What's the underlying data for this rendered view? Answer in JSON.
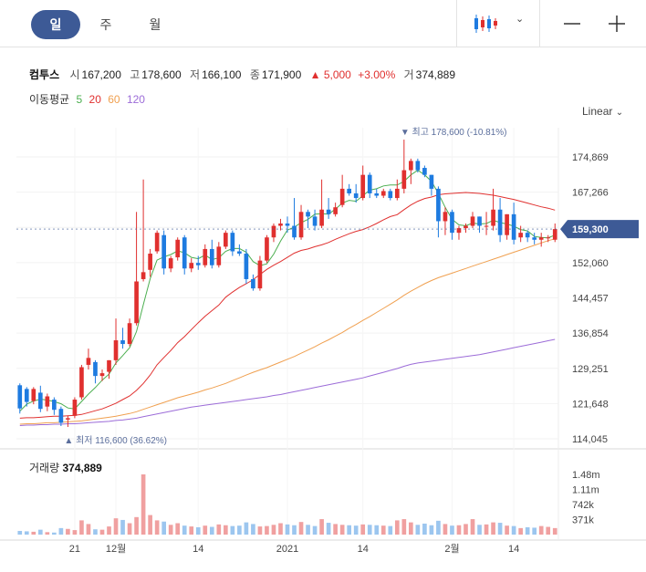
{
  "tabs": [
    {
      "label": "일",
      "active": true
    },
    {
      "label": "주",
      "active": false
    },
    {
      "label": "월",
      "active": false
    }
  ],
  "controls": {
    "chart_type_icon": "candlestick-icon",
    "chevron": "chevron-down-icon",
    "zoom_out": "minus-icon",
    "zoom_in": "plus-icon"
  },
  "quote": {
    "name": "컴투스",
    "open_label": "시",
    "open": "167,200",
    "high_label": "고",
    "high": "178,600",
    "low_label": "저",
    "low": "166,100",
    "close_label": "종",
    "close": "171,900",
    "change_arrow": "▲",
    "change": "5,000",
    "change_pct": "+3.00%",
    "volume_label": "거",
    "volume": "374,889"
  },
  "moving_average": {
    "label": "이동평균",
    "periods": [
      "5",
      "20",
      "60",
      "120"
    ],
    "colors": [
      "#4caf50",
      "#e0302f",
      "#f0a050",
      "#9c6cd8"
    ]
  },
  "scale_mode": "Linear",
  "volume_panel": {
    "title": "거래량",
    "value": "374,889"
  },
  "colors": {
    "up": "#e0302f",
    "down": "#1e7be0",
    "tag": "#3d5a96",
    "annotation": "#5b6e9c"
  },
  "chart_data": {
    "type": "candlestick",
    "price_axis": {
      "ticks": [
        "174,869",
        "167,266",
        "159,663",
        "152,060",
        "144,457",
        "136,854",
        "129,251",
        "121,648",
        "114,045"
      ],
      "min": 114045,
      "max": 174869
    },
    "volume_axis": {
      "ticks": [
        "1.48m",
        "1.11m",
        "742k",
        "371k"
      ]
    },
    "x_ticks": [
      {
        "label": "21",
        "index": 8
      },
      {
        "label": "12월",
        "index": 14
      },
      {
        "label": "14",
        "index": 26
      },
      {
        "label": "2021",
        "index": 39
      },
      {
        "label": "14",
        "index": 50
      },
      {
        "label": "2월",
        "index": 63
      },
      {
        "label": "14",
        "index": 72
      }
    ],
    "current_price": {
      "label": "159,300",
      "value": 159300
    },
    "high_annotation": {
      "text": "▼ 최고 178,600 (-10.81%)",
      "value": 178600,
      "index": 56
    },
    "low_annotation": {
      "text": "▲ 최저 116,600 (36.62%)",
      "value": 116600,
      "index": 7
    },
    "candles": [
      [
        125600,
        120600,
        126000,
        119500
      ],
      [
        124800,
        122000,
        125200,
        121000
      ],
      [
        122200,
        124800,
        125200,
        121500
      ],
      [
        124000,
        120500,
        125500,
        119800
      ],
      [
        121000,
        123200,
        123800,
        120000
      ],
      [
        122500,
        120300,
        123000,
        119200
      ],
      [
        120500,
        117500,
        121000,
        116800
      ],
      [
        118200,
        118500,
        119000,
        116600
      ],
      [
        119000,
        122500,
        123000,
        118500
      ],
      [
        123000,
        129500,
        130000,
        122500
      ],
      [
        130000,
        131500,
        133500,
        129000
      ],
      [
        130600,
        127600,
        131000,
        126000
      ],
      [
        127600,
        128200,
        129000,
        126500
      ],
      [
        128500,
        131000,
        131000,
        127000
      ],
      [
        131000,
        135300,
        140000,
        130000
      ],
      [
        135300,
        134500,
        138000,
        133500
      ],
      [
        134500,
        139000,
        140000,
        134000
      ],
      [
        139000,
        148000,
        163000,
        138500
      ],
      [
        148500,
        150000,
        170000,
        148000
      ],
      [
        150500,
        154000,
        155000,
        149000
      ],
      [
        154500,
        158500,
        159000,
        154000
      ],
      [
        158000,
        150800,
        159000,
        149500
      ],
      [
        150800,
        153000,
        153500,
        150000
      ],
      [
        153200,
        157000,
        157500,
        152500
      ],
      [
        157500,
        150800,
        158000,
        149500
      ],
      [
        150800,
        152000,
        153000,
        150000
      ],
      [
        152000,
        151500,
        153500,
        150500
      ],
      [
        151500,
        155000,
        156000,
        151000
      ],
      [
        155000,
        151500,
        157000,
        150800
      ],
      [
        151500,
        155500,
        156500,
        151000
      ],
      [
        155500,
        158500,
        159000,
        155000
      ],
      [
        158500,
        154500,
        159000,
        153500
      ],
      [
        154500,
        154000,
        156000,
        153500
      ],
      [
        154000,
        148500,
        155000,
        147500
      ],
      [
        148500,
        146500,
        149500,
        146000
      ],
      [
        146500,
        152500,
        153500,
        146000
      ],
      [
        152500,
        157500,
        158000,
        152000
      ],
      [
        157500,
        160000,
        160500,
        156500
      ],
      [
        160000,
        160500,
        161500,
        159000
      ],
      [
        160500,
        160000,
        162000,
        158500
      ],
      [
        160000,
        157500,
        166000,
        157000
      ],
      [
        157500,
        163000,
        164500,
        157000
      ],
      [
        163000,
        162000,
        163500,
        159500
      ],
      [
        162000,
        160000,
        163500,
        159000
      ],
      [
        160000,
        163500,
        170000,
        159500
      ],
      [
        163500,
        162500,
        166000,
        161500
      ],
      [
        162500,
        164000,
        165000,
        162000
      ],
      [
        164500,
        168000,
        171000,
        164000
      ],
      [
        168000,
        167000,
        169000,
        166500
      ],
      [
        167000,
        166000,
        169000,
        165000
      ],
      [
        166000,
        171000,
        173000,
        165500
      ],
      [
        171000,
        167000,
        171500,
        166000
      ],
      [
        167000,
        166500,
        168000,
        166000
      ],
      [
        166500,
        167500,
        168000,
        166000
      ],
      [
        167500,
        166000,
        168000,
        165500
      ],
      [
        166000,
        168000,
        170000,
        165500
      ],
      [
        168000,
        172000,
        178600,
        167000
      ],
      [
        172000,
        174000,
        174500,
        169000
      ],
      [
        174000,
        172000,
        174500,
        171500
      ],
      [
        172500,
        171000,
        173000,
        170500
      ],
      [
        171000,
        168000,
        171000,
        166500
      ],
      [
        168000,
        161000,
        168500,
        157500
      ],
      [
        161000,
        163000,
        164000,
        158000
      ],
      [
        163000,
        158500,
        163500,
        157000
      ],
      [
        158500,
        159500,
        160000,
        157000
      ],
      [
        159500,
        160000,
        160500,
        158500
      ],
      [
        160000,
        162000,
        163000,
        159500
      ],
      [
        162000,
        160000,
        162000,
        158500
      ],
      [
        160000,
        160000,
        163000,
        158000
      ],
      [
        160000,
        163500,
        168000,
        159000
      ],
      [
        163500,
        158000,
        166000,
        156500
      ],
      [
        158000,
        162500,
        162500,
        157000
      ],
      [
        162500,
        157000,
        165000,
        156000
      ],
      [
        157500,
        158500,
        160000,
        156500
      ],
      [
        158500,
        157500,
        159000,
        156500
      ],
      [
        157500,
        157000,
        158500,
        156000
      ],
      [
        157000,
        157500,
        158500,
        155500
      ],
      [
        157500,
        157500,
        158000,
        156500
      ],
      [
        157000,
        159300,
        160500,
        156500
      ]
    ],
    "volume": [
      90,
      80,
      70,
      120,
      60,
      50,
      160,
      140,
      110,
      350,
      260,
      130,
      120,
      200,
      400,
      360,
      280,
      430,
      1480,
      480,
      350,
      320,
      240,
      280,
      220,
      200,
      180,
      220,
      190,
      250,
      230,
      210,
      220,
      300,
      260,
      200,
      210,
      240,
      280,
      250,
      230,
      310,
      240,
      210,
      380,
      290,
      260,
      240,
      230,
      220,
      250,
      240,
      230,
      220,
      210,
      350,
      380,
      300,
      240,
      270,
      230,
      340,
      260,
      220,
      230,
      260,
      380,
      240,
      250,
      300,
      290,
      220,
      210,
      160,
      180,
      170,
      210,
      190,
      160
    ],
    "ma5": [
      120000,
      121500,
      122200,
      122600,
      122400,
      122100,
      121600,
      120700,
      120500,
      122100,
      123700,
      125100,
      126700,
      128000,
      130400,
      132000,
      133700,
      137200,
      143000,
      148600,
      152600,
      153300,
      153800,
      154600,
      154200,
      153200,
      152900,
      153700,
      152700,
      153100,
      154500,
      155100,
      155100,
      154300,
      152300,
      151400,
      151800,
      153900,
      156700,
      159100,
      159700,
      160700,
      161400,
      162500,
      162600,
      162500,
      163600,
      164900,
      165500,
      165300,
      166500,
      167700,
      168000,
      168600,
      168800,
      168800,
      169600,
      171000,
      172000,
      171000,
      169600,
      167000,
      164000,
      161400,
      160200,
      160000,
      160600,
      160400,
      160500,
      161200,
      160700,
      160400,
      159900,
      159200,
      158900,
      157700,
      157500,
      157400,
      158000
    ],
    "ma20": [
      118500,
      118600,
      118600,
      118700,
      118800,
      118900,
      118900,
      119000,
      119100,
      119300,
      119700,
      120100,
      120500,
      121100,
      121700,
      122500,
      123300,
      124500,
      126000,
      127800,
      130000,
      131600,
      133100,
      134800,
      136100,
      137600,
      139100,
      140500,
      141700,
      142900,
      144600,
      145700,
      146700,
      147500,
      148400,
      149500,
      150600,
      151500,
      152300,
      153200,
      154100,
      154700,
      155000,
      155500,
      155900,
      156400,
      157100,
      157700,
      158300,
      158800,
      159200,
      159800,
      160500,
      161300,
      162000,
      162400,
      163500,
      164500,
      165300,
      165900,
      166200,
      166700,
      166900,
      167000,
      167100,
      167200,
      167100,
      167000,
      166800,
      166600,
      166300,
      166000,
      165700,
      165300,
      164900,
      164500,
      164100,
      163800,
      163400
    ],
    "ma60": [
      117200,
      117300,
      117300,
      117400,
      117500,
      117500,
      117600,
      117700,
      117800,
      117900,
      118100,
      118300,
      118500,
      118700,
      118900,
      119200,
      119500,
      119900,
      120400,
      120900,
      121400,
      121900,
      122400,
      122900,
      123300,
      123700,
      124100,
      124600,
      125000,
      125500,
      126000,
      126600,
      127200,
      127800,
      128400,
      128900,
      129400,
      130000,
      130600,
      131200,
      131800,
      132500,
      133200,
      133900,
      134700,
      135400,
      136200,
      137000,
      137900,
      138700,
      139600,
      140400,
      141300,
      142200,
      143100,
      144000,
      145000,
      145900,
      146700,
      147500,
      148200,
      148800,
      149300,
      149800,
      150300,
      150800,
      151300,
      151800,
      152300,
      152800,
      153300,
      153800,
      154300,
      154800,
      155300,
      155800,
      156300,
      156800,
      157200
    ],
    "ma120": [
      116900,
      117000,
      117000,
      117100,
      117100,
      117200,
      117200,
      117300,
      117300,
      117400,
      117500,
      117600,
      117700,
      117800,
      118000,
      118100,
      118300,
      118500,
      118800,
      119100,
      119400,
      119700,
      120000,
      120300,
      120600,
      120900,
      121100,
      121300,
      121500,
      121700,
      121900,
      122100,
      122300,
      122500,
      122700,
      122900,
      123100,
      123400,
      123600,
      123900,
      124200,
      124500,
      124800,
      125100,
      125400,
      125700,
      126000,
      126300,
      126600,
      126900,
      127200,
      127600,
      128000,
      128400,
      128800,
      129200,
      129700,
      130100,
      130400,
      130600,
      130800,
      131000,
      131200,
      131400,
      131600,
      131800,
      132000,
      132200,
      132500,
      132800,
      133100,
      133400,
      133700,
      134000,
      134300,
      134600,
      134900,
      135200,
      135500
    ]
  }
}
